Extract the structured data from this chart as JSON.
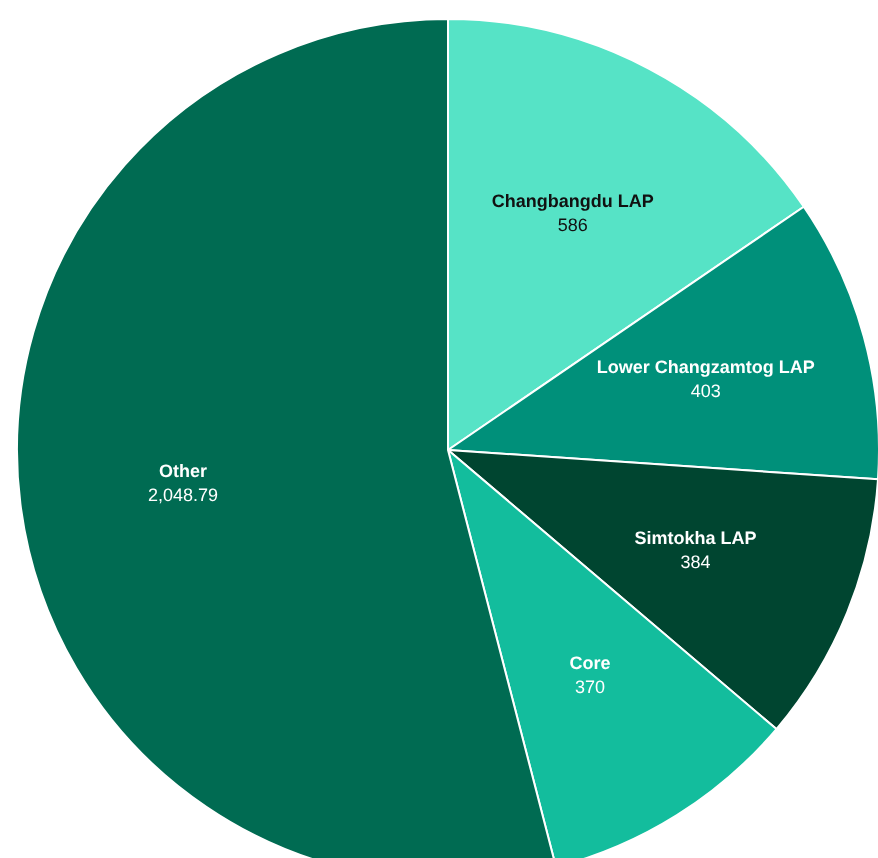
{
  "chart_data": {
    "type": "pie",
    "categories": [
      "Changbangdu LAP",
      "Lower Changzamtog LAP",
      "Simtokha LAP",
      "Core",
      "Other"
    ],
    "values": [
      586,
      403,
      384,
      370,
      2048.79
    ],
    "colors": [
      "#56e3c6",
      "#00907a",
      "#004530",
      "#13bd9d",
      "#006b52"
    ],
    "value_labels": [
      "586",
      "403",
      "384",
      "370",
      "2,048.79"
    ],
    "legend": false
  }
}
